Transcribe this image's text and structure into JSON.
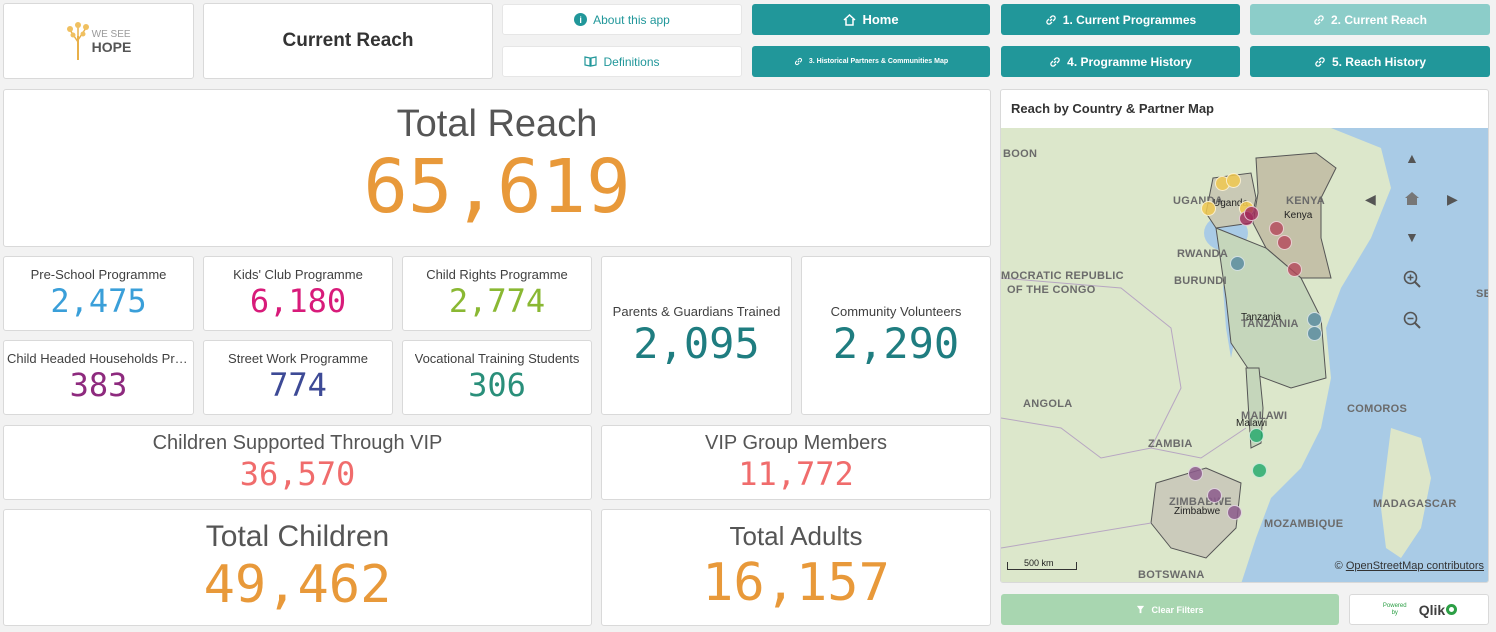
{
  "header": {
    "logo_text_line1": "WE SEE",
    "logo_text_line2": "HOPE",
    "sheet_title": "Current Reach",
    "about_label": "About this app",
    "definitions_label": "Definitions"
  },
  "nav": {
    "home": "Home",
    "current_programmes": "1. Current Programmes",
    "current_reach": "2. Current Reach",
    "historical_map": "3. Historical Partners & Communities Map",
    "programme_history": "4. Programme History",
    "reach_history": "5. Reach History"
  },
  "kpis": {
    "total_reach": {
      "label": "Total Reach",
      "value": "65,619"
    },
    "preschool": {
      "label": "Pre-School Programme",
      "value": "2,475"
    },
    "kids_club": {
      "label": "Kids' Club Programme",
      "value": "6,180"
    },
    "child_rights": {
      "label": "Child Rights Programme",
      "value": "2,774"
    },
    "child_headed": {
      "label": "Child Headed Households Pro...",
      "value": "383"
    },
    "street_work": {
      "label": "Street Work Programme",
      "value": "774"
    },
    "vocational": {
      "label": "Vocational Training Students",
      "value": "306"
    },
    "parents": {
      "label": "Parents & Guardians Trained",
      "value": "2,095"
    },
    "volunteers": {
      "label": "Community Volunteers",
      "value": "2,290"
    },
    "vip_children": {
      "label": "Children Supported Through VIP",
      "value": "36,570"
    },
    "vip_members": {
      "label": "VIP Group Members",
      "value": "11,772"
    },
    "total_children": {
      "label": "Total Children",
      "value": "49,462"
    },
    "total_adults": {
      "label": "Total Adults",
      "value": "16,157"
    }
  },
  "colors": {
    "orange": "#e8993a",
    "blue": "#3a9fd9",
    "pink": "#d81b7a",
    "green": "#8ab833",
    "purple": "#8e2a7e",
    "navy": "#3d4a96",
    "teal": "#2a8f7a",
    "darkteal": "#1f7d80",
    "coral": "#f06c6c",
    "brand_teal": "#21979a"
  },
  "map": {
    "title": "Reach by Country & Partner Map",
    "labels": {
      "boon": "BOON",
      "uganda": "UGANDA",
      "kenya": "KENYA",
      "rwanda": "RWANDA",
      "burundi": "BURUNDI",
      "drc1": "MOCRATIC REPUBLIC",
      "drc2": "OF THE CONGO",
      "tanzania": "TANZANIA",
      "angola": "ANGOLA",
      "malawi": "MALAWI",
      "zambia": "ZAMBIA",
      "comoros": "COMOROS",
      "zimbabwe": "ZIMBABWE",
      "madagascar": "MADAGASCAR",
      "mozambique": "MOZAMBIQUE",
      "botswana": "BOTSWANA",
      "se": "SE"
    },
    "cities": {
      "uganda": "Uganda",
      "kenya": "Kenya",
      "tanzania": "Tanzania",
      "malawi": "Malawi",
      "zimbabwe": "Zimbabwe"
    },
    "scale": "500 km",
    "attribution_prefix": "©",
    "attribution": "OpenStreetMap contributors"
  },
  "footer": {
    "clear_filters": "Clear Filters",
    "powered_by": "Powered by",
    "brand": "Qlik"
  }
}
